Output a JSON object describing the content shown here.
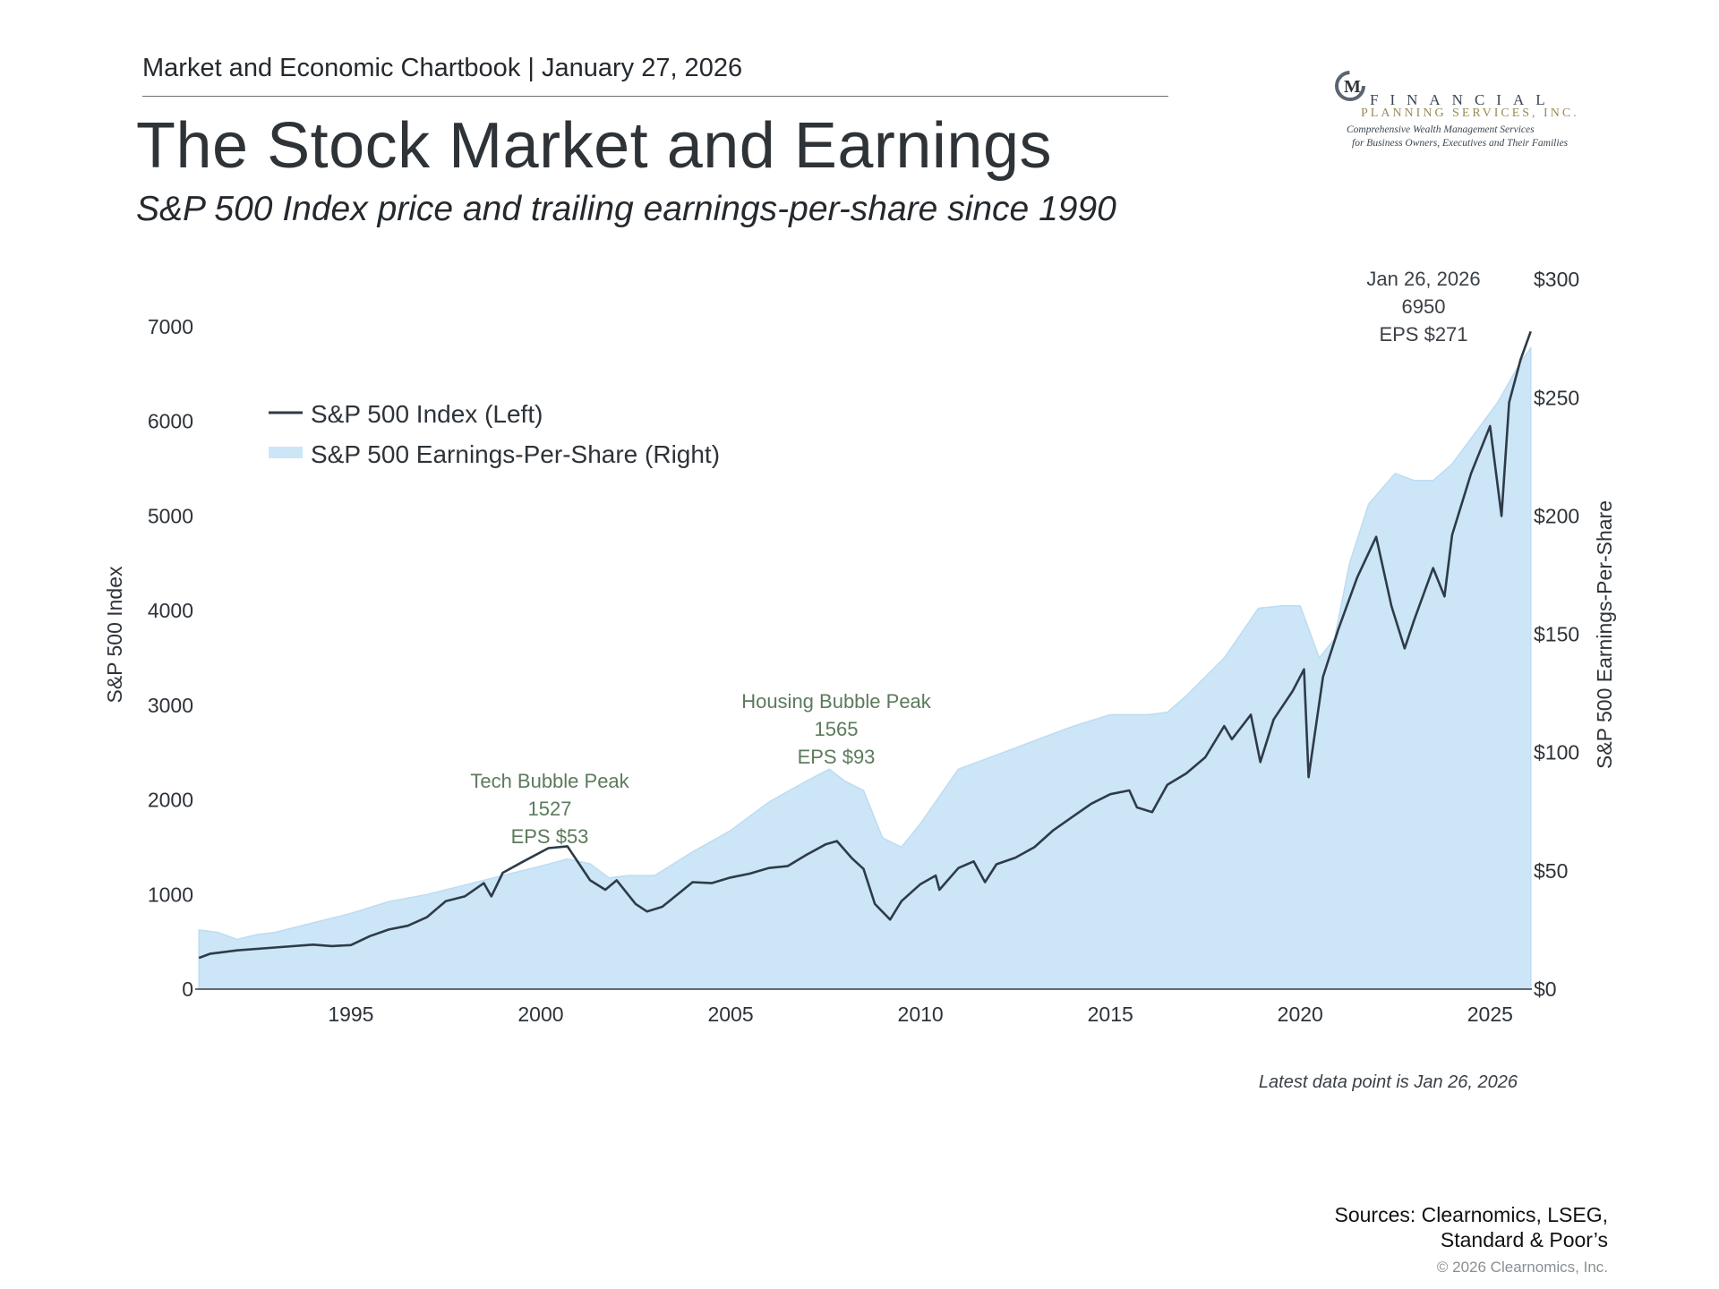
{
  "header": {
    "kicker": "Market and Economic Chartbook | January 27, 2026",
    "title": "The Stock Market and Earnings",
    "subtitle": "S&P 500 Index price and trailing earnings-per-share since 1990"
  },
  "logo": {
    "monogram": "M",
    "line1": "FINANCIAL",
    "line2": "PLANNING SERVICES, INC.",
    "line3": "Comprehensive Wealth Management Services",
    "line4": "for Business Owners, Executives and Their Families"
  },
  "chart_data": {
    "type": "line",
    "ylabel": "S&P 500 Index",
    "y2label": "S&P 500 Earnings-Per-Share",
    "xlim": [
      1990.9,
      2026.1
    ],
    "ylim": [
      0,
      7000
    ],
    "y2lim": [
      0,
      280
    ],
    "x_ticks": [
      "1995",
      "2000",
      "2005",
      "2010",
      "2015",
      "2020",
      "2025"
    ],
    "y_ticks": [
      "0",
      "1000",
      "2000",
      "3000",
      "4000",
      "5000",
      "6000",
      "7000"
    ],
    "y2_ticks": [
      "$0",
      "$50",
      "$100",
      "$150",
      "$200",
      "$250",
      "$300"
    ],
    "legend": {
      "placement": "top-left",
      "items": [
        "S&P 500 Index (Left)",
        "S&P 500 Earnings-Per-Share (Right)"
      ]
    },
    "series": [
      {
        "name": "S&P 500 Index (Left)",
        "axis": "left",
        "color": "#2f3b48",
        "points": [
          [
            1991.0,
            330
          ],
          [
            1991.3,
            375
          ],
          [
            1992.0,
            410
          ],
          [
            1993.0,
            440
          ],
          [
            1994.0,
            470
          ],
          [
            1994.5,
            455
          ],
          [
            1995.0,
            465
          ],
          [
            1995.5,
            560
          ],
          [
            1996.0,
            630
          ],
          [
            1996.5,
            670
          ],
          [
            1997.0,
            760
          ],
          [
            1997.5,
            930
          ],
          [
            1998.0,
            980
          ],
          [
            1998.5,
            1120
          ],
          [
            1998.7,
            980
          ],
          [
            1999.0,
            1230
          ],
          [
            1999.5,
            1340
          ],
          [
            2000.2,
            1490
          ],
          [
            2000.7,
            1510
          ],
          [
            2001.0,
            1330
          ],
          [
            2001.3,
            1150
          ],
          [
            2001.7,
            1050
          ],
          [
            2002.0,
            1150
          ],
          [
            2002.5,
            900
          ],
          [
            2002.8,
            820
          ],
          [
            2003.2,
            870
          ],
          [
            2003.6,
            1000
          ],
          [
            2004.0,
            1130
          ],
          [
            2004.5,
            1120
          ],
          [
            2005.0,
            1180
          ],
          [
            2005.5,
            1220
          ],
          [
            2006.0,
            1280
          ],
          [
            2006.5,
            1300
          ],
          [
            2007.0,
            1420
          ],
          [
            2007.5,
            1530
          ],
          [
            2007.8,
            1565
          ],
          [
            2008.2,
            1380
          ],
          [
            2008.5,
            1270
          ],
          [
            2008.8,
            900
          ],
          [
            2009.2,
            735
          ],
          [
            2009.5,
            930
          ],
          [
            2010.0,
            1110
          ],
          [
            2010.4,
            1200
          ],
          [
            2010.5,
            1050
          ],
          [
            2011.0,
            1280
          ],
          [
            2011.4,
            1350
          ],
          [
            2011.7,
            1130
          ],
          [
            2012.0,
            1320
          ],
          [
            2012.5,
            1390
          ],
          [
            2013.0,
            1500
          ],
          [
            2013.5,
            1680
          ],
          [
            2014.0,
            1820
          ],
          [
            2014.5,
            1960
          ],
          [
            2015.0,
            2060
          ],
          [
            2015.5,
            2100
          ],
          [
            2015.7,
            1920
          ],
          [
            2016.1,
            1870
          ],
          [
            2016.5,
            2160
          ],
          [
            2017.0,
            2280
          ],
          [
            2017.5,
            2450
          ],
          [
            2018.0,
            2780
          ],
          [
            2018.2,
            2640
          ],
          [
            2018.7,
            2900
          ],
          [
            2018.95,
            2400
          ],
          [
            2019.3,
            2850
          ],
          [
            2019.8,
            3150
          ],
          [
            2020.1,
            3380
          ],
          [
            2020.22,
            2240
          ],
          [
            2020.6,
            3300
          ],
          [
            2021.0,
            3800
          ],
          [
            2021.5,
            4350
          ],
          [
            2022.0,
            4780
          ],
          [
            2022.4,
            4050
          ],
          [
            2022.75,
            3600
          ],
          [
            2023.0,
            3900
          ],
          [
            2023.5,
            4450
          ],
          [
            2023.8,
            4150
          ],
          [
            2024.0,
            4800
          ],
          [
            2024.5,
            5450
          ],
          [
            2025.0,
            5950
          ],
          [
            2025.3,
            5000
          ],
          [
            2025.5,
            6200
          ],
          [
            2025.8,
            6650
          ],
          [
            2026.07,
            6950
          ]
        ]
      },
      {
        "name": "S&P 500 Earnings-Per-Share (Right)",
        "axis": "right",
        "color": "#cce6f8",
        "points": [
          [
            1991.0,
            25
          ],
          [
            1991.5,
            24
          ],
          [
            1992.0,
            21
          ],
          [
            1992.5,
            23
          ],
          [
            1993.0,
            24
          ],
          [
            1994.0,
            28
          ],
          [
            1995.0,
            32
          ],
          [
            1996.0,
            37
          ],
          [
            1997.0,
            40
          ],
          [
            1998.0,
            44
          ],
          [
            1999.0,
            48
          ],
          [
            2000.0,
            52
          ],
          [
            2000.7,
            55
          ],
          [
            2001.3,
            53
          ],
          [
            2001.8,
            47
          ],
          [
            2002.3,
            48
          ],
          [
            2003.0,
            48
          ],
          [
            2004.0,
            58
          ],
          [
            2005.0,
            67
          ],
          [
            2006.0,
            79
          ],
          [
            2007.0,
            88
          ],
          [
            2007.6,
            93
          ],
          [
            2008.0,
            88
          ],
          [
            2008.5,
            84
          ],
          [
            2009.0,
            64
          ],
          [
            2009.5,
            60
          ],
          [
            2010.0,
            70
          ],
          [
            2011.0,
            93
          ],
          [
            2012.0,
            99
          ],
          [
            2013.0,
            105
          ],
          [
            2014.0,
            111
          ],
          [
            2015.0,
            116
          ],
          [
            2016.0,
            116
          ],
          [
            2016.5,
            117
          ],
          [
            2017.0,
            124
          ],
          [
            2018.0,
            140
          ],
          [
            2018.9,
            161
          ],
          [
            2019.5,
            162
          ],
          [
            2020.0,
            162
          ],
          [
            2020.5,
            140
          ],
          [
            2020.9,
            148
          ],
          [
            2021.3,
            180
          ],
          [
            2021.8,
            205
          ],
          [
            2022.5,
            218
          ],
          [
            2023.0,
            215
          ],
          [
            2023.5,
            215
          ],
          [
            2024.0,
            222
          ],
          [
            2024.6,
            235
          ],
          [
            2025.2,
            248
          ],
          [
            2025.8,
            265
          ],
          [
            2026.07,
            271
          ]
        ]
      }
    ],
    "annotations": [
      {
        "lines": [
          "Tech Bubble Peak",
          "1527",
          "EPS $53"
        ],
        "x": 2000.2,
        "color": "#5c7a5c"
      },
      {
        "lines": [
          "Housing Bubble Peak",
          "1565",
          "EPS $93"
        ],
        "x": 2007.7,
        "color": "#5c7a5c"
      },
      {
        "lines": [
          "Jan 26, 2026",
          "6950",
          "EPS $271"
        ],
        "x": 2024.0,
        "color": "#3b4046"
      }
    ],
    "grid": false
  },
  "footer": {
    "note": "Latest data point is Jan 26, 2026",
    "sources": [
      "Sources: Clearnomics, LSEG,",
      "Standard & Poor’s"
    ],
    "copyright": "© 2026 Clearnomics, Inc."
  }
}
